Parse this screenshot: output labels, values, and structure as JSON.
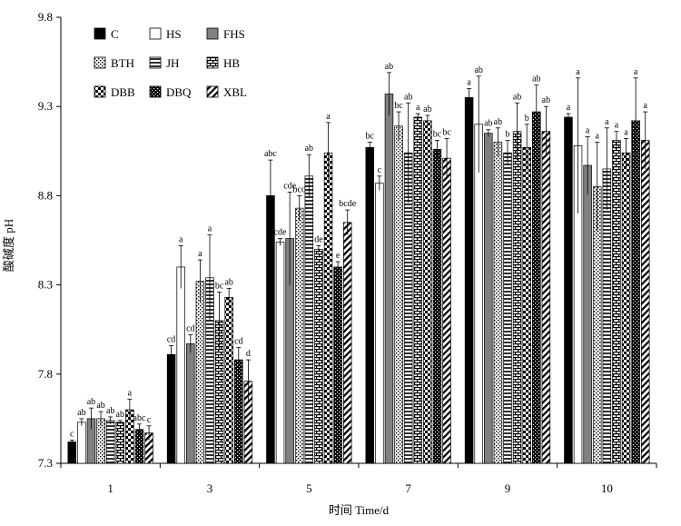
{
  "chart_data": {
    "type": "bar",
    "xlabel": "时间 Time/d",
    "ylabel": "酸碱度 pH",
    "ylim": [
      7.3,
      9.8
    ],
    "yticks": [
      "7.3",
      "7.8",
      "8.3",
      "8.8",
      "9.3",
      "9.8"
    ],
    "categories": [
      "1",
      "3",
      "5",
      "7",
      "9",
      "10"
    ],
    "legend_position": "top-left",
    "grid": false,
    "series": [
      {
        "name": "C",
        "pattern": "solid-black",
        "values": [
          7.42,
          7.91,
          8.8,
          9.07,
          9.35,
          9.24
        ],
        "errors": [
          0.01,
          0.05,
          0.2,
          0.03,
          0.05,
          0.02
        ],
        "letters": [
          "c",
          "cd",
          "abc",
          "bc",
          "a",
          "a"
        ]
      },
      {
        "name": "HS",
        "pattern": "white",
        "values": [
          7.53,
          8.4,
          8.54,
          8.87,
          9.2,
          9.08
        ],
        "errors": [
          0.02,
          0.12,
          0.02,
          0.04,
          0.27,
          0.38
        ],
        "letters": [
          "ab",
          "a",
          "cde",
          "c",
          "ab",
          "a"
        ]
      },
      {
        "name": "FHS",
        "pattern": "gray",
        "values": [
          7.55,
          7.97,
          8.56,
          9.37,
          9.15,
          8.97
        ],
        "errors": [
          0.06,
          0.05,
          0.26,
          0.12,
          0.02,
          0.16
        ],
        "letters": [
          "ab",
          "cd",
          "cde",
          "ab",
          "ab",
          "a"
        ]
      },
      {
        "name": "BTH",
        "pattern": "dots",
        "values": [
          7.55,
          8.32,
          8.73,
          9.19,
          9.1,
          8.85
        ],
        "errors": [
          0.04,
          0.12,
          0.07,
          0.08,
          0.08,
          0.25
        ],
        "letters": [
          "ab",
          "a",
          "bcd",
          "bc",
          "ab",
          "a"
        ]
      },
      {
        "name": "JH",
        "pattern": "hstripes",
        "values": [
          7.54,
          8.34,
          8.91,
          9.04,
          9.04,
          8.95
        ],
        "errors": [
          0.02,
          0.24,
          0.12,
          0.28,
          0.07,
          0.23
        ],
        "letters": [
          "ab",
          "a",
          "ab",
          "ab",
          "b",
          "a"
        ]
      },
      {
        "name": "HB",
        "pattern": "brick",
        "values": [
          7.53,
          8.1,
          8.5,
          9.24,
          9.16,
          9.11
        ],
        "errors": [
          0.01,
          0.16,
          0.02,
          0.02,
          0.16,
          0.05
        ],
        "letters": [
          "ab",
          "bc",
          "de",
          "a",
          "ab",
          "a"
        ]
      },
      {
        "name": "DBB",
        "pattern": "checker",
        "values": [
          7.6,
          8.23,
          9.04,
          9.22,
          9.07,
          9.04
        ],
        "errors": [
          0.06,
          0.05,
          0.17,
          0.03,
          0.13,
          0.08
        ],
        "letters": [
          "a",
          "ab",
          "a",
          "ab",
          "b",
          "a"
        ]
      },
      {
        "name": "DBQ",
        "pattern": "dense-dots",
        "values": [
          7.49,
          7.88,
          8.4,
          9.06,
          9.27,
          9.22
        ],
        "errors": [
          0.03,
          0.07,
          0.03,
          0.05,
          0.15,
          0.24
        ],
        "letters": [
          "abc",
          "cd",
          "e",
          "bc",
          "ab",
          "a"
        ]
      },
      {
        "name": "XBL",
        "pattern": "diagonal",
        "values": [
          7.47,
          7.76,
          8.65,
          9.01,
          9.16,
          9.11
        ],
        "errors": [
          0.04,
          0.12,
          0.07,
          0.11,
          0.14,
          0.16
        ],
        "letters": [
          "c",
          "d",
          "bcde",
          "bc",
          "ab",
          "a"
        ]
      }
    ]
  }
}
